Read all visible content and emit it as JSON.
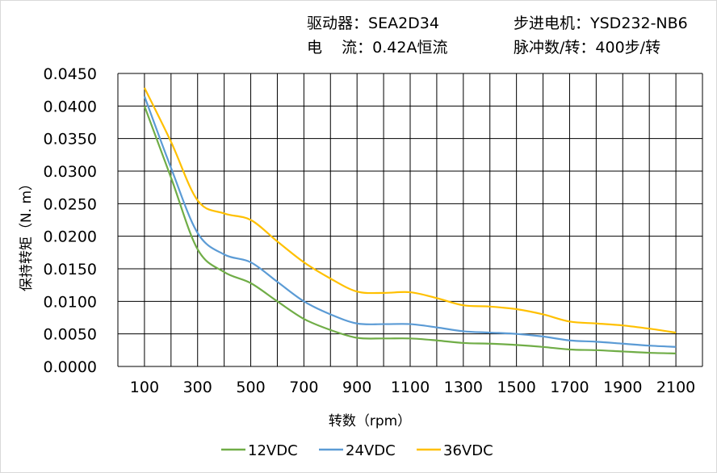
{
  "info": {
    "driver_label": "驱动器：",
    "driver_value": "SEA2D34",
    "current_label": "电    流：",
    "current_value": "0.42A恒流",
    "motor_label": "步进电机：",
    "motor_value": "YSD232-NB6",
    "pulse_label": "脉冲数/转：",
    "pulse_value": "400步/转"
  },
  "chart_data": {
    "type": "line",
    "title": "",
    "xlabel": "转数（rpm）",
    "ylabel": "保持转矩（N. m）",
    "x": [
      100,
      200,
      300,
      400,
      500,
      600,
      700,
      800,
      900,
      1000,
      1100,
      1200,
      1300,
      1400,
      1500,
      1600,
      1700,
      1800,
      1900,
      2000,
      2100
    ],
    "x_tick_labels": [
      "100",
      "300",
      "500",
      "700",
      "900",
      "1100",
      "1300",
      "1500",
      "1700",
      "1900",
      "2100"
    ],
    "y_tick_labels": [
      "0.0000",
      "0.0050",
      "0.0100",
      "0.0150",
      "0.0200",
      "0.0250",
      "0.0300",
      "0.0350",
      "0.0400",
      "0.0450"
    ],
    "ylim": [
      0,
      0.045
    ],
    "grid": true,
    "legend_position": "bottom",
    "series": [
      {
        "name": "12VDC",
        "color": "#70ad47",
        "values": [
          0.04,
          0.029,
          0.018,
          0.0145,
          0.0128,
          0.01,
          0.0073,
          0.0056,
          0.0044,
          0.0043,
          0.0043,
          0.004,
          0.0036,
          0.0035,
          0.0033,
          0.003,
          0.0026,
          0.0025,
          0.0023,
          0.0021,
          0.002
        ]
      },
      {
        "name": "24VDC",
        "color": "#5b9bd5",
        "values": [
          0.0415,
          0.0305,
          0.0205,
          0.0172,
          0.016,
          0.013,
          0.01,
          0.008,
          0.0066,
          0.0065,
          0.0065,
          0.006,
          0.0054,
          0.0052,
          0.005,
          0.0046,
          0.004,
          0.0038,
          0.0035,
          0.0032,
          0.003
        ]
      },
      {
        "name": "36VDC",
        "color": "#ffc000",
        "values": [
          0.0428,
          0.0345,
          0.0255,
          0.0235,
          0.0225,
          0.0192,
          0.016,
          0.0135,
          0.0115,
          0.0113,
          0.0114,
          0.0105,
          0.0094,
          0.0092,
          0.0088,
          0.008,
          0.0069,
          0.0066,
          0.0063,
          0.0058,
          0.0052
        ]
      }
    ]
  }
}
